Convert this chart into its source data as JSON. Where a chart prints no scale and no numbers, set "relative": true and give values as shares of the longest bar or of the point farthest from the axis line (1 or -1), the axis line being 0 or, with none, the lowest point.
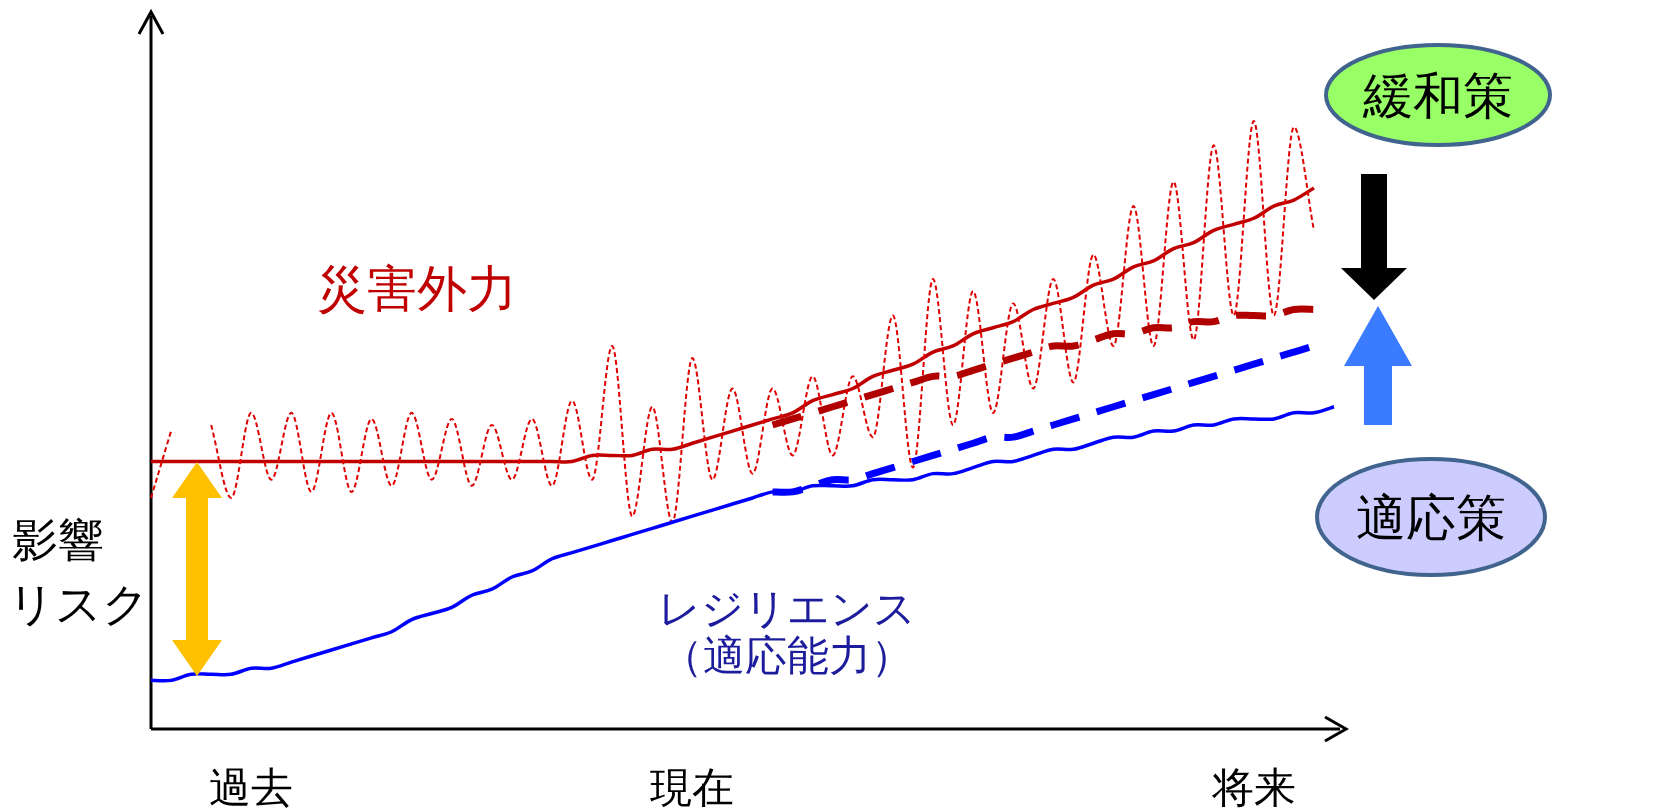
{
  "chart_data": {
    "type": "line",
    "relative": true,
    "legend": false,
    "tick_labels": "x",
    "marker": "none",
    "categories": [
      null,
      null,
      null,
      null,
      null,
      "過去",
      null,
      null,
      null,
      null,
      null,
      null,
      null,
      null,
      null,
      null,
      null,
      null,
      null,
      null,
      null,
      null,
      null,
      null,
      null,
      null,
      null,
      "現在",
      null,
      null,
      null,
      null,
      null,
      null,
      null,
      null,
      null,
      null,
      null,
      null,
      null,
      null,
      null,
      null,
      null,
      null,
      null,
      null,
      null,
      null,
      null,
      null,
      null,
      null,
      null,
      "将来",
      null,
      null,
      null,
      null
    ],
    "annotations": [
      "影響",
      "リスク",
      "緩和策",
      "適応策"
    ],
    "series": [
      {
        "name": "災害外力",
        "color": "#c00000",
        "line_style": "solid",
        "values": [
          0.44,
          0.44,
          0.44,
          0.44,
          0.44,
          0.44,
          0.44,
          0.44,
          0.44,
          0.44,
          0.44,
          0.44,
          0.44,
          0.44,
          0.44,
          0.44,
          0.44,
          0.44,
          0.44,
          0.44,
          0.44,
          0.44,
          0.45,
          0.45,
          0.45,
          0.46,
          0.46,
          0.47,
          0.48,
          0.49,
          0.5,
          0.51,
          0.52,
          0.54,
          0.55,
          0.56,
          0.58,
          0.59,
          0.6,
          0.62,
          0.63,
          0.65,
          0.66,
          0.67,
          0.69,
          0.7,
          0.71,
          0.73,
          0.74,
          0.76,
          0.77,
          0.79,
          0.8,
          0.82,
          0.83,
          0.84,
          0.86,
          0.87,
          0.89,
          null
        ]
      },
      {
        "color": "#e00000",
        "line_style": "dotted",
        "values": [
          0.38,
          0.49,
          null,
          0.5,
          0.38,
          0.52,
          0.41,
          0.52,
          0.39,
          0.52,
          0.39,
          0.51,
          0.4,
          0.52,
          0.41,
          0.51,
          0.4,
          0.5,
          0.41,
          0.51,
          0.4,
          0.54,
          0.41,
          0.63,
          0.35,
          0.53,
          0.34,
          0.61,
          0.41,
          0.56,
          0.42,
          0.56,
          0.45,
          0.58,
          0.45,
          0.58,
          0.48,
          0.68,
          0.43,
          0.74,
          0.5,
          0.72,
          0.52,
          0.7,
          0.56,
          0.74,
          0.57,
          0.78,
          0.63,
          0.86,
          0.63,
          0.9,
          0.64,
          0.96,
          0.68,
          1.0,
          0.68,
          0.99,
          0.82,
          null
        ]
      },
      {
        "color": "#b00000",
        "line_style": "dashed",
        "values": [
          null,
          null,
          null,
          null,
          null,
          null,
          null,
          null,
          null,
          null,
          null,
          null,
          null,
          null,
          null,
          null,
          null,
          null,
          null,
          null,
          null,
          null,
          null,
          null,
          null,
          null,
          null,
          null,
          null,
          null,
          null,
          0.5,
          0.51,
          0.52,
          0.53,
          0.54,
          0.55,
          0.56,
          0.57,
          0.58,
          0.58,
          0.59,
          0.6,
          0.61,
          0.62,
          0.63,
          0.63,
          0.64,
          0.65,
          0.65,
          0.66,
          0.66,
          0.67,
          0.67,
          0.68,
          0.68,
          0.68,
          0.69,
          0.69,
          null
        ]
      },
      {
        "name": "レジリエンス（適応能力）",
        "color": "#0000ff",
        "line_style": "solid",
        "values": [
          0.08,
          0.08,
          0.09,
          0.09,
          0.09,
          0.1,
          0.1,
          0.11,
          0.12,
          0.13,
          0.14,
          0.15,
          0.16,
          0.18,
          0.19,
          0.2,
          0.22,
          0.23,
          0.25,
          0.26,
          0.28,
          0.29,
          0.3,
          0.31,
          0.32,
          0.33,
          0.34,
          0.35,
          0.36,
          0.37,
          0.38,
          0.39,
          0.39,
          0.4,
          0.4,
          0.4,
          0.41,
          0.41,
          0.41,
          0.42,
          0.42,
          0.43,
          0.44,
          0.44,
          0.45,
          0.46,
          0.46,
          0.47,
          0.48,
          0.48,
          0.49,
          0.49,
          0.5,
          0.5,
          0.51,
          0.51,
          0.51,
          0.52,
          0.52,
          0.53
        ]
      },
      {
        "color": "#0000ff",
        "line_style": "dashed",
        "values": [
          null,
          null,
          null,
          null,
          null,
          null,
          null,
          null,
          null,
          null,
          null,
          null,
          null,
          null,
          null,
          null,
          null,
          null,
          null,
          null,
          null,
          null,
          null,
          null,
          null,
          null,
          null,
          null,
          null,
          null,
          null,
          0.39,
          0.39,
          0.4,
          0.41,
          0.41,
          0.42,
          0.43,
          0.44,
          0.45,
          0.46,
          0.47,
          0.48,
          0.48,
          0.49,
          0.5,
          0.51,
          0.52,
          0.53,
          0.54,
          0.55,
          0.56,
          0.57,
          0.58,
          0.59,
          0.6,
          0.61,
          0.62,
          0.63,
          null
        ]
      }
    ]
  }
}
